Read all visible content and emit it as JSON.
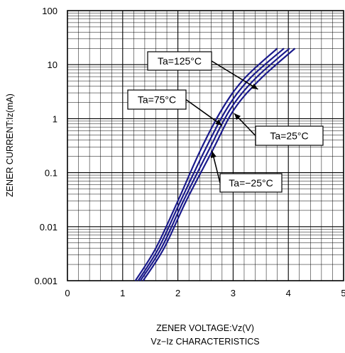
{
  "chart_data": {
    "type": "line",
    "title": "Vz−Iz CHARACTERISTICS",
    "xlabel": "ZENER VOLTAGE:Vz(V)",
    "ylabel": "ZENER CURRENT:Iz(mA)",
    "xlim": [
      0,
      5
    ],
    "ylim": [
      0.001,
      100
    ],
    "yscale": "log",
    "grid": true,
    "legend": "none",
    "x_ticks": [
      "0",
      "1",
      "2",
      "3",
      "4",
      "5"
    ],
    "y_ticks": [
      "0.001",
      "0.01",
      "0.1",
      "1",
      "10",
      "100"
    ],
    "x_tick_values": [
      0,
      1,
      2,
      3,
      4,
      5
    ],
    "y_tick_values": [
      0.001,
      0.01,
      0.1,
      1,
      10,
      100
    ],
    "line_color": "#1a1a8c",
    "series": [
      {
        "x": [
          1.23,
          1.6,
          2.0,
          2.4,
          2.8,
          3.2,
          3.8
        ],
        "y": [
          0.001,
          0.004,
          0.03,
          0.25,
          1.5,
          5.5,
          20
        ]
      },
      {
        "x": [
          1.28,
          1.65,
          2.05,
          2.48,
          2.88,
          3.3,
          3.92
        ],
        "y": [
          0.001,
          0.004,
          0.03,
          0.25,
          1.5,
          5.5,
          20
        ]
      },
      {
        "x": [
          1.32,
          1.7,
          2.1,
          2.55,
          2.95,
          3.4,
          4.02
        ],
        "y": [
          0.001,
          0.004,
          0.03,
          0.25,
          1.5,
          5.5,
          20
        ]
      },
      {
        "x": [
          1.37,
          1.75,
          2.15,
          2.62,
          3.02,
          3.5,
          4.12
        ],
        "y": [
          0.001,
          0.004,
          0.03,
          0.25,
          1.5,
          5.5,
          20
        ]
      }
    ],
    "annotations": [
      {
        "text": "Ta=125°C",
        "arrow_to": [
          3.45,
          3.5
        ]
      },
      {
        "text": "Ta=75°C",
        "arrow_to": [
          2.8,
          0.75
        ]
      },
      {
        "text": "Ta=25°C",
        "arrow_to": [
          3.02,
          1.25
        ]
      },
      {
        "text": "Ta=−25°C",
        "arrow_to": [
          2.62,
          0.25
        ]
      }
    ]
  }
}
